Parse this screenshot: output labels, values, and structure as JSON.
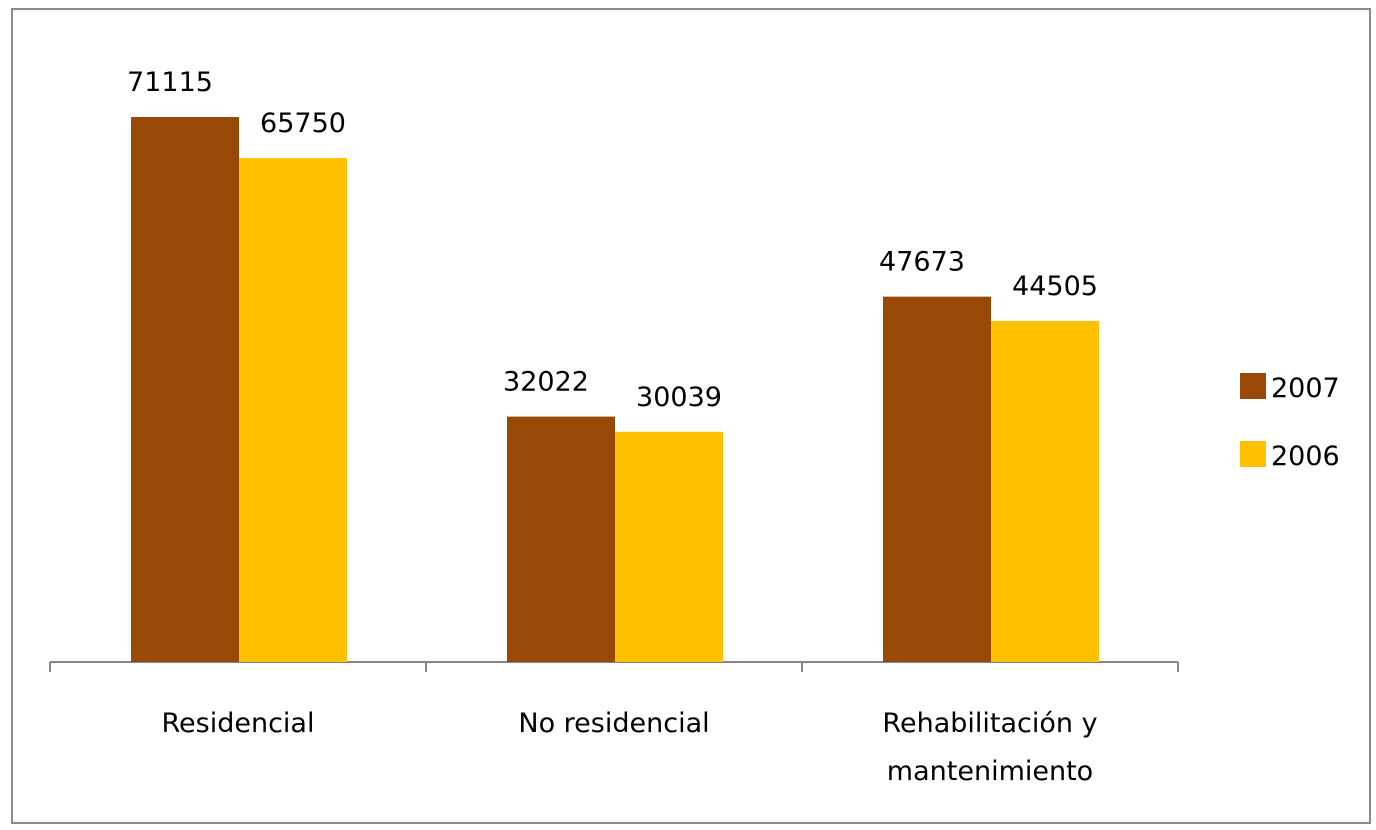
{
  "chart_data": {
    "type": "bar",
    "categories": [
      [
        "Residencial"
      ],
      [
        "No residencial"
      ],
      [
        "Rehabilitación y",
        "mantenimiento"
      ]
    ],
    "series": [
      {
        "name": "2007",
        "color": "#984807",
        "values": [
          71115,
          32022,
          47673
        ],
        "labels": [
          "71115",
          "32022",
          "47673"
        ]
      },
      {
        "name": "2006",
        "color": "#FFC000",
        "values": [
          65750,
          30039,
          44505
        ],
        "labels": [
          "65750",
          "30039",
          "44505"
        ]
      }
    ],
    "title": "",
    "xlabel": "",
    "ylabel": "",
    "ylim": [
      0,
      75000
    ],
    "grid": false,
    "legend": "right"
  }
}
